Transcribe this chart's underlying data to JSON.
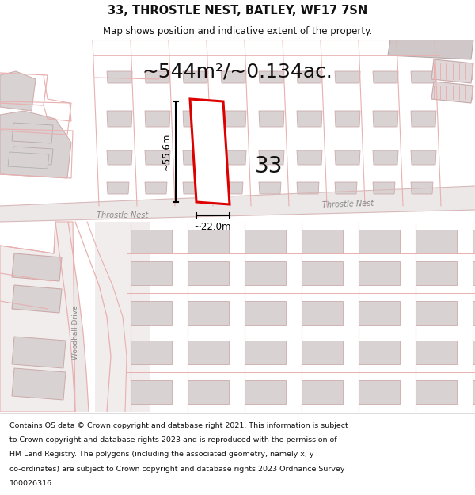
{
  "title": "33, THROSTLE NEST, BATLEY, WF17 7SN",
  "subtitle": "Map shows position and indicative extent of the property.",
  "area_text": "~544m²/~0.134ac.",
  "label_33": "33",
  "dim_height": "~55.6m",
  "dim_width": "~22.0m",
  "road_label_left": "Throstle Nest",
  "road_label_right": "Throstle Nest",
  "road_label_vert": "Woodhall Drive",
  "footer_lines": [
    "Contains OS data © Crown copyright and database right 2021. This information is subject",
    "to Crown copyright and database rights 2023 and is reproduced with the permission of",
    "HM Land Registry. The polygons (including the associated geometry, namely x, y",
    "co-ordinates) are subject to Crown copyright and database rights 2023 Ordnance Survey",
    "100026316."
  ],
  "map_bg": "#f7f2f2",
  "plot_outline_color": "#dd0000",
  "plot_fill_color": "#ffffff",
  "pink": "#e8b0b0",
  "building_fill": "#d8d2d2",
  "building_outline": "#ccaaaa",
  "road_fill": "#ede8e8",
  "road_outline": "#d8b8b8",
  "title_fontsize": 10.5,
  "subtitle_fontsize": 8.5,
  "area_fontsize": 18,
  "dim_fontsize": 8.5,
  "label_fontsize": 20,
  "footer_fontsize": 6.8
}
